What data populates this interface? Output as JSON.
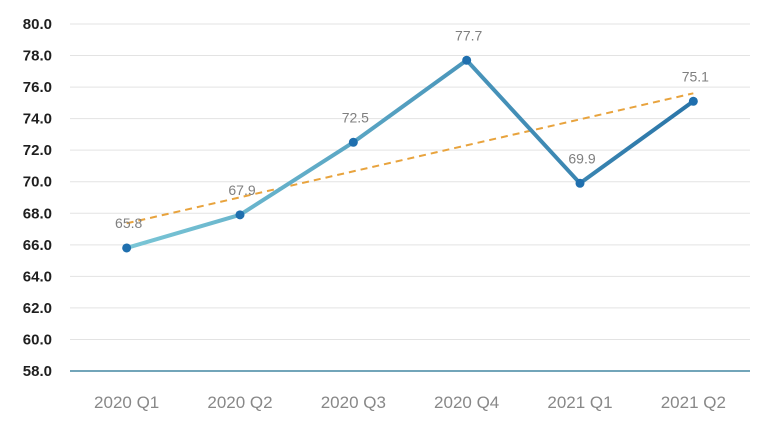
{
  "chart_data": {
    "type": "line",
    "categories": [
      "2020 Q1",
      "2020 Q2",
      "2020 Q3",
      "2020 Q4",
      "2021 Q1",
      "2021 Q2"
    ],
    "series": [
      {
        "values": [
          65.8,
          67.9,
          72.5,
          77.7,
          69.9,
          75.1
        ],
        "data_labels": [
          "65.8",
          "67.9",
          "72.5",
          "77.7",
          "69.9",
          "75.1"
        ],
        "line_color_start": "#7ac6d6",
        "line_color_end": "#2a75a8",
        "marker_color": "#1f6fae"
      }
    ],
    "trendline": {
      "type": "linear",
      "color": "#e8a33d",
      "style": "dashed"
    },
    "ylim": [
      58,
      80
    ],
    "y_ticks": [
      "58.0",
      "60.0",
      "62.0",
      "64.0",
      "66.0",
      "68.0",
      "70.0",
      "72.0",
      "74.0",
      "76.0",
      "78.0",
      "80.0"
    ],
    "grid": true,
    "legend": false
  }
}
